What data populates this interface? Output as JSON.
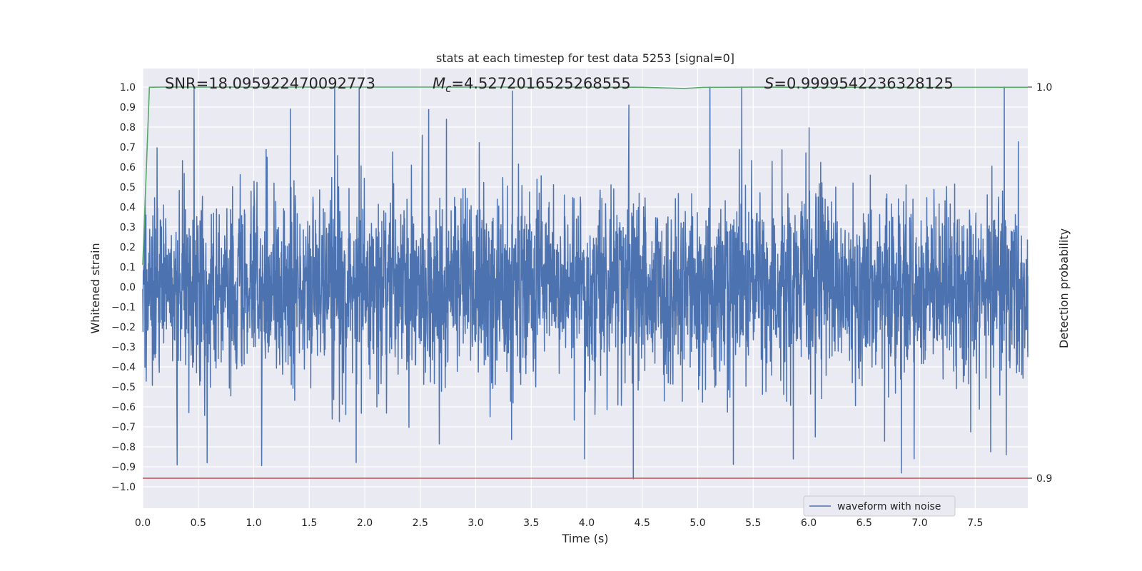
{
  "chart_data": {
    "type": "line",
    "title": "stats at each timestep for test data 5253 [signal=0]",
    "xlabel": "Time (s)",
    "ylabel": "Whitened strain",
    "y2label": "Detection probability",
    "xlim": [
      0.0,
      8.0
    ],
    "ylim": [
      -1.05,
      1.05
    ],
    "y2lim": [
      0.8996,
      1.0004
    ],
    "x_ticks": [
      "0.0",
      "0.5",
      "1.0",
      "1.5",
      "2.0",
      "2.5",
      "3.0",
      "3.5",
      "4.0",
      "4.5",
      "5.0",
      "5.5",
      "6.0",
      "6.5",
      "7.0",
      "7.5"
    ],
    "y_ticks": [
      "1.0",
      "0.9",
      "0.8",
      "0.7",
      "0.6",
      "0.5",
      "0.4",
      "0.3",
      "0.2",
      "0.1",
      "0.0",
      "-0.1",
      "-0.2",
      "-0.3",
      "-0.4",
      "-0.5",
      "-0.6",
      "-0.7",
      "-0.8",
      "-0.9",
      "-1.0"
    ],
    "y2_ticks": [
      "1.0",
      "0.9"
    ],
    "grid": true,
    "legend_position": "bottom-right",
    "annotations": {
      "snr": "SNR=18.095922470092773",
      "mc_symbol": "M",
      "mc_sub": "c",
      "mc_value": "=4.5272016525268555",
      "s_symbol": "S",
      "s_value": "=0.9999542236328125"
    },
    "series": [
      {
        "name": "waveform with noise",
        "color": "#4c72b0",
        "kind": "noise",
        "x_range": [
          0.0,
          8.0
        ],
        "typical_amplitude": 0.45,
        "max": 1.0,
        "min": -0.96,
        "notable_peaks": [
          {
            "x": 1.95,
            "y": 1.0
          },
          {
            "x": 3.33,
            "y": 0.98
          },
          {
            "x": 4.42,
            "y": -0.96
          },
          {
            "x": 0.31,
            "y": -0.89
          },
          {
            "x": 0.58,
            "y": -0.88
          },
          {
            "x": 1.33,
            "y": 0.89
          },
          {
            "x": 4.38,
            "y": 0.91
          },
          {
            "x": 6.95,
            "y": -0.86
          },
          {
            "x": 7.78,
            "y": -0.84
          }
        ]
      },
      {
        "color": "#55a868",
        "axis": "right",
        "x": [
          0.0,
          0.06,
          0.1,
          0.2,
          1.0,
          2.0,
          3.0,
          4.0,
          4.5,
          4.88,
          5.05,
          5.5,
          6.0,
          7.0,
          8.0
        ],
        "y": [
          0.9545,
          0.99995,
          0.99997,
          1.0,
          1.0,
          1.0,
          1.0,
          1.0,
          0.99995,
          0.99965,
          0.99993,
          0.99998,
          0.99996,
          0.99994,
          0.99995
        ]
      },
      {
        "color": "#c44e52",
        "axis": "right",
        "x": [
          0.0,
          8.0
        ],
        "y": [
          0.9,
          0.9
        ]
      }
    ]
  }
}
